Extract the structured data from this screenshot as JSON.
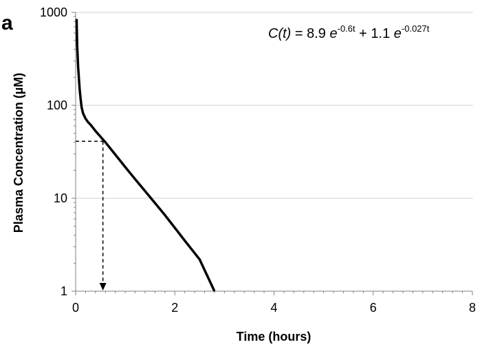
{
  "chart_data": {
    "type": "line",
    "panel_label": "a",
    "xlabel": "Time (hours)",
    "ylabel": "Plasma Concentration (µM)",
    "xlim": [
      0,
      8
    ],
    "ylim": [
      1,
      1000
    ],
    "y_scale": "log",
    "x_ticks": [
      0,
      2,
      4,
      6,
      8
    ],
    "y_ticks": [
      1,
      10,
      100,
      1000
    ],
    "grid": "horizontal",
    "annotation": {
      "prefix": "C(t)",
      "eq": " = 8.9 ",
      "e1": "e",
      "exp1": "-0.6t",
      "plus": " + 1.1 ",
      "e2": "e",
      "exp2": "-0.027t"
    },
    "series": [
      {
        "x": [
          0.02,
          0.03,
          0.05,
          0.08,
          0.1,
          0.12,
          0.15,
          0.2,
          0.25,
          0.3,
          0.4,
          0.5,
          0.6,
          0.8,
          1.0,
          1.2,
          1.5,
          1.8,
          2.0,
          2.2,
          2.5,
          2.8
        ],
        "y": [
          850,
          450,
          260,
          150,
          118,
          95,
          82,
          72,
          66,
          62,
          53,
          46,
          40,
          29.5,
          21.7,
          16,
          10.3,
          6.6,
          4.8,
          3.5,
          2.2,
          1.0
        ]
      }
    ],
    "reference": {
      "x": 0.55,
      "y": 41
    }
  }
}
